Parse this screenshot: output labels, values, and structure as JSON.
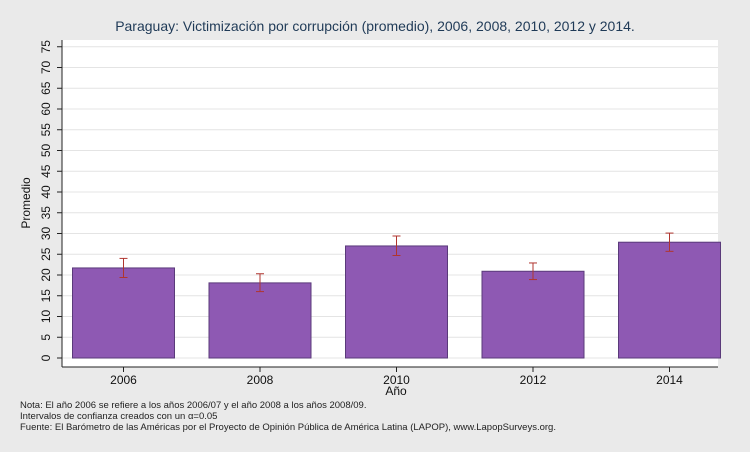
{
  "chart_data": {
    "type": "bar",
    "title": "Paraguay: Victimización por corrupción (promedio), 2006, 2008, 2010, 2012 y 2014.",
    "xlabel": "Año",
    "ylabel": "Promedio",
    "categories": [
      "2006",
      "2008",
      "2010",
      "2012",
      "2014"
    ],
    "values": [
      21.7,
      18.1,
      27.0,
      20.9,
      27.9
    ],
    "ci_lower": [
      19.4,
      16.0,
      24.7,
      18.9,
      25.7
    ],
    "ci_upper": [
      24.0,
      20.3,
      29.4,
      22.9,
      30.1
    ],
    "ylim": [
      0,
      77
    ],
    "yticks": [
      "0",
      "5",
      "10",
      "15",
      "20",
      "25",
      "30",
      "35",
      "40",
      "45",
      "50",
      "55",
      "60",
      "65",
      "70",
      "75"
    ],
    "grid": true,
    "bar_color": "#8e59b3",
    "bar_edge_color": "#5a3a7a",
    "errorbar_color": "#b0352f"
  },
  "notes": {
    "line1": "Nota: El año 2006 se refiere a los años 2006/07 y el año 2008 a los años 2008/09.",
    "line2": "Intervalos de confianza creados con un α=0.05",
    "line3": "Fuente: El Barómetro de las Américas por el Proyecto de Opinión Pública de América Latina (LAPOP), www.LapopSurveys.org."
  }
}
